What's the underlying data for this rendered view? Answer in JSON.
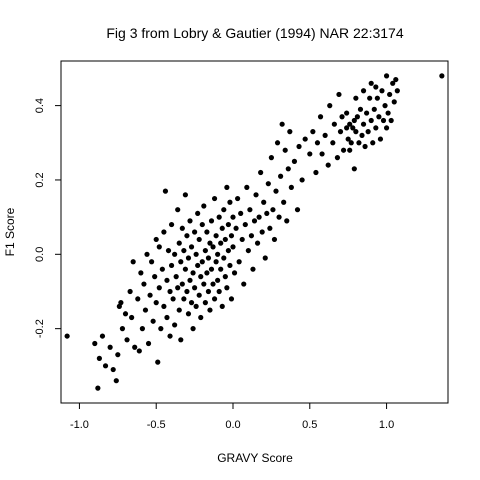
{
  "chart_data": {
    "type": "scatter",
    "title": "Fig 3 from Lobry & Gautier (1994) NAR 22:3174",
    "xlabel": "GRAVY Score",
    "ylabel": "F1 Score",
    "xlim": [
      -1.12,
      1.4
    ],
    "ylim": [
      -0.4,
      0.52
    ],
    "xticks": [
      -1.0,
      -0.5,
      0.0,
      0.5,
      1.0
    ],
    "xtick_labels": [
      "-1.0",
      "-0.5",
      "0.0",
      "0.5",
      "1.0"
    ],
    "yticks": [
      -0.2,
      0.0,
      0.2,
      0.4
    ],
    "ytick_labels": [
      "-0.2",
      "0.0",
      "0.2",
      "0.4"
    ],
    "grid": false,
    "legend": "none",
    "point_color": "#000000",
    "points": [
      [
        -1.08,
        -0.22
      ],
      [
        -0.88,
        -0.36
      ],
      [
        -0.87,
        -0.28
      ],
      [
        -0.9,
        -0.24
      ],
      [
        -0.85,
        -0.22
      ],
      [
        -0.83,
        -0.3
      ],
      [
        -0.8,
        -0.25
      ],
      [
        -0.78,
        -0.31
      ],
      [
        -0.76,
        -0.34
      ],
      [
        -0.75,
        -0.27
      ],
      [
        -0.74,
        -0.14
      ],
      [
        -0.73,
        -0.13
      ],
      [
        -0.72,
        -0.2
      ],
      [
        -0.7,
        -0.16
      ],
      [
        -0.69,
        -0.23
      ],
      [
        -0.67,
        -0.1
      ],
      [
        -0.66,
        -0.17
      ],
      [
        -0.65,
        -0.02
      ],
      [
        -0.64,
        -0.25
      ],
      [
        -0.62,
        -0.12
      ],
      [
        -0.61,
        -0.26
      ],
      [
        -0.6,
        -0.05
      ],
      [
        -0.59,
        -0.2
      ],
      [
        -0.58,
        -0.08
      ],
      [
        -0.57,
        -0.15
      ],
      [
        -0.56,
        0.0
      ],
      [
        -0.55,
        -0.24
      ],
      [
        -0.54,
        -0.11
      ],
      [
        -0.53,
        -0.02
      ],
      [
        -0.52,
        -0.18
      ],
      [
        -0.51,
        -0.06
      ],
      [
        -0.5,
        0.04
      ],
      [
        -0.5,
        -0.13
      ],
      [
        -0.49,
        -0.29
      ],
      [
        -0.48,
        -0.09
      ],
      [
        -0.48,
        0.02
      ],
      [
        -0.47,
        -0.2
      ],
      [
        -0.46,
        -0.04
      ],
      [
        -0.45,
        0.06
      ],
      [
        -0.45,
        -0.14
      ],
      [
        -0.44,
        0.17
      ],
      [
        -0.43,
        -0.07
      ],
      [
        -0.43,
        -0.17
      ],
      [
        -0.42,
        0.01
      ],
      [
        -0.41,
        -0.1
      ],
      [
        -0.41,
        -0.22
      ],
      [
        -0.4,
        0.08
      ],
      [
        -0.4,
        -0.03
      ],
      [
        -0.39,
        -0.12
      ],
      [
        -0.38,
        0.0
      ],
      [
        -0.38,
        -0.19
      ],
      [
        -0.37,
        -0.06
      ],
      [
        -0.36,
        0.12
      ],
      [
        -0.36,
        -0.09
      ],
      [
        -0.35,
        0.03
      ],
      [
        -0.35,
        -0.15
      ],
      [
        -0.34,
        -0.02
      ],
      [
        -0.34,
        -0.23
      ],
      [
        -0.33,
        0.07
      ],
      [
        -0.33,
        -0.08
      ],
      [
        -0.32,
        -0.12
      ],
      [
        -0.32,
        0.01
      ],
      [
        -0.31,
        -0.04
      ],
      [
        -0.31,
        0.16
      ],
      [
        -0.3,
        -0.1
      ],
      [
        -0.3,
        0.05
      ],
      [
        -0.29,
        -0.16
      ],
      [
        -0.29,
        -0.01
      ],
      [
        -0.28,
        0.09
      ],
      [
        -0.28,
        -0.07
      ],
      [
        -0.27,
        -0.13
      ],
      [
        -0.27,
        0.02
      ],
      [
        -0.26,
        -0.05
      ],
      [
        -0.26,
        -0.2
      ],
      [
        -0.25,
        0.06
      ],
      [
        -0.25,
        -0.09
      ],
      [
        -0.24,
        0.0
      ],
      [
        -0.24,
        -0.14
      ],
      [
        -0.23,
        0.11
      ],
      [
        -0.23,
        -0.03
      ],
      [
        -0.22,
        -0.11
      ],
      [
        -0.22,
        0.04
      ],
      [
        -0.21,
        -0.06
      ],
      [
        -0.21,
        -0.17
      ],
      [
        -0.2,
        0.08
      ],
      [
        -0.2,
        -0.02
      ],
      [
        -0.19,
        -0.08
      ],
      [
        -0.19,
        0.13
      ],
      [
        -0.18,
        -0.13
      ],
      [
        -0.18,
        0.01
      ],
      [
        -0.17,
        -0.05
      ],
      [
        -0.17,
        0.06
      ],
      [
        -0.16,
        -0.1
      ],
      [
        -0.16,
        -0.01
      ],
      [
        -0.15,
        0.03
      ],
      [
        -0.15,
        -0.15
      ],
      [
        -0.14,
        0.09
      ],
      [
        -0.14,
        -0.04
      ],
      [
        -0.13,
        -0.08
      ],
      [
        -0.13,
        0.02
      ],
      [
        -0.12,
        0.15
      ],
      [
        -0.12,
        -0.12
      ],
      [
        -0.11,
        -0.02
      ],
      [
        -0.11,
        0.05
      ],
      [
        -0.1,
        -0.07
      ],
      [
        -0.1,
        0.0
      ],
      [
        -0.09,
        0.1
      ],
      [
        -0.09,
        -0.1
      ],
      [
        -0.08,
        0.03
      ],
      [
        -0.08,
        -0.04
      ],
      [
        -0.07,
        -0.14
      ],
      [
        -0.07,
        0.07
      ],
      [
        -0.06,
        -0.01
      ],
      [
        -0.06,
        0.12
      ],
      [
        -0.05,
        -0.06
      ],
      [
        -0.05,
        0.04
      ],
      [
        -0.04,
        0.18
      ],
      [
        -0.04,
        -0.09
      ],
      [
        -0.03,
        0.01
      ],
      [
        -0.03,
        0.08
      ],
      [
        -0.02,
        -0.03
      ],
      [
        -0.02,
        0.14
      ],
      [
        -0.01,
        -0.12
      ],
      [
        -0.01,
        0.05
      ],
      [
        0.0,
        0.02
      ],
      [
        0.0,
        0.1
      ],
      [
        0.01,
        -0.05
      ],
      [
        0.02,
        0.07
      ],
      [
        0.03,
        0.15
      ],
      [
        0.04,
        -0.02
      ],
      [
        0.05,
        0.11
      ],
      [
        0.06,
        0.04
      ],
      [
        0.07,
        -0.08
      ],
      [
        0.08,
        0.08
      ],
      [
        0.09,
        0.18
      ],
      [
        0.1,
        0.01
      ],
      [
        0.11,
        0.12
      ],
      [
        0.12,
        0.05
      ],
      [
        0.13,
        -0.04
      ],
      [
        0.14,
        0.09
      ],
      [
        0.15,
        0.16
      ],
      [
        0.16,
        0.03
      ],
      [
        0.17,
        0.1
      ],
      [
        0.18,
        0.22
      ],
      [
        0.19,
        0.06
      ],
      [
        0.2,
        0.14
      ],
      [
        0.21,
        -0.01
      ],
      [
        0.22,
        0.11
      ],
      [
        0.23,
        0.19
      ],
      [
        0.24,
        0.07
      ],
      [
        0.25,
        0.26
      ],
      [
        0.26,
        0.12
      ],
      [
        0.27,
        0.04
      ],
      [
        0.28,
        0.17
      ],
      [
        0.29,
        0.3
      ],
      [
        0.3,
        0.1
      ],
      [
        0.31,
        0.21
      ],
      [
        0.32,
        0.35
      ],
      [
        0.33,
        0.14
      ],
      [
        0.34,
        0.28
      ],
      [
        0.35,
        0.09
      ],
      [
        0.36,
        0.23
      ],
      [
        0.37,
        0.33
      ],
      [
        0.38,
        0.18
      ],
      [
        0.4,
        0.25
      ],
      [
        0.42,
        0.12
      ],
      [
        0.43,
        0.29
      ],
      [
        0.45,
        0.2
      ],
      [
        0.47,
        0.31
      ],
      [
        0.5,
        0.27
      ],
      [
        0.52,
        0.33
      ],
      [
        0.54,
        0.22
      ],
      [
        0.55,
        0.3
      ],
      [
        0.57,
        0.37
      ],
      [
        0.58,
        0.27
      ],
      [
        0.6,
        0.32
      ],
      [
        0.62,
        0.24
      ],
      [
        0.63,
        0.4
      ],
      [
        0.65,
        0.3
      ],
      [
        0.66,
        0.35
      ],
      [
        0.68,
        0.26
      ],
      [
        0.69,
        0.43
      ],
      [
        0.7,
        0.33
      ],
      [
        0.71,
        0.37
      ],
      [
        0.72,
        0.28
      ],
      [
        0.74,
        0.38
      ],
      [
        0.75,
        0.31
      ],
      [
        0.76,
        0.35
      ],
      [
        0.77,
        0.3
      ],
      [
        0.78,
        0.34
      ],
      [
        0.79,
        0.36
      ],
      [
        0.8,
        0.33
      ],
      [
        0.81,
        0.37
      ],
      [
        0.82,
        0.3
      ],
      [
        0.83,
        0.39
      ],
      [
        0.84,
        0.32
      ],
      [
        0.85,
        0.35
      ],
      [
        0.86,
        0.29
      ],
      [
        0.87,
        0.38
      ],
      [
        0.88,
        0.33
      ],
      [
        0.89,
        0.42
      ],
      [
        0.9,
        0.36
      ],
      [
        0.91,
        0.3
      ],
      [
        0.92,
        0.39
      ],
      [
        0.93,
        0.34
      ],
      [
        0.94,
        0.42
      ],
      [
        0.95,
        0.37
      ],
      [
        0.96,
        0.31
      ],
      [
        0.97,
        0.44
      ],
      [
        0.98,
        0.36
      ],
      [
        0.99,
        0.4
      ],
      [
        1.0,
        0.34
      ],
      [
        1.0,
        0.48
      ],
      [
        1.01,
        0.38
      ],
      [
        1.02,
        0.43
      ],
      [
        1.03,
        0.36
      ],
      [
        1.04,
        0.46
      ],
      [
        1.05,
        0.41
      ],
      [
        1.06,
        0.47
      ],
      [
        1.07,
        0.44
      ],
      [
        0.9,
        0.46
      ],
      [
        0.93,
        0.45
      ],
      [
        1.36,
        0.48
      ],
      [
        0.85,
        0.44
      ],
      [
        0.8,
        0.42
      ],
      [
        0.74,
        0.34
      ],
      [
        0.76,
        0.28
      ],
      [
        0.79,
        0.23
      ]
    ]
  }
}
